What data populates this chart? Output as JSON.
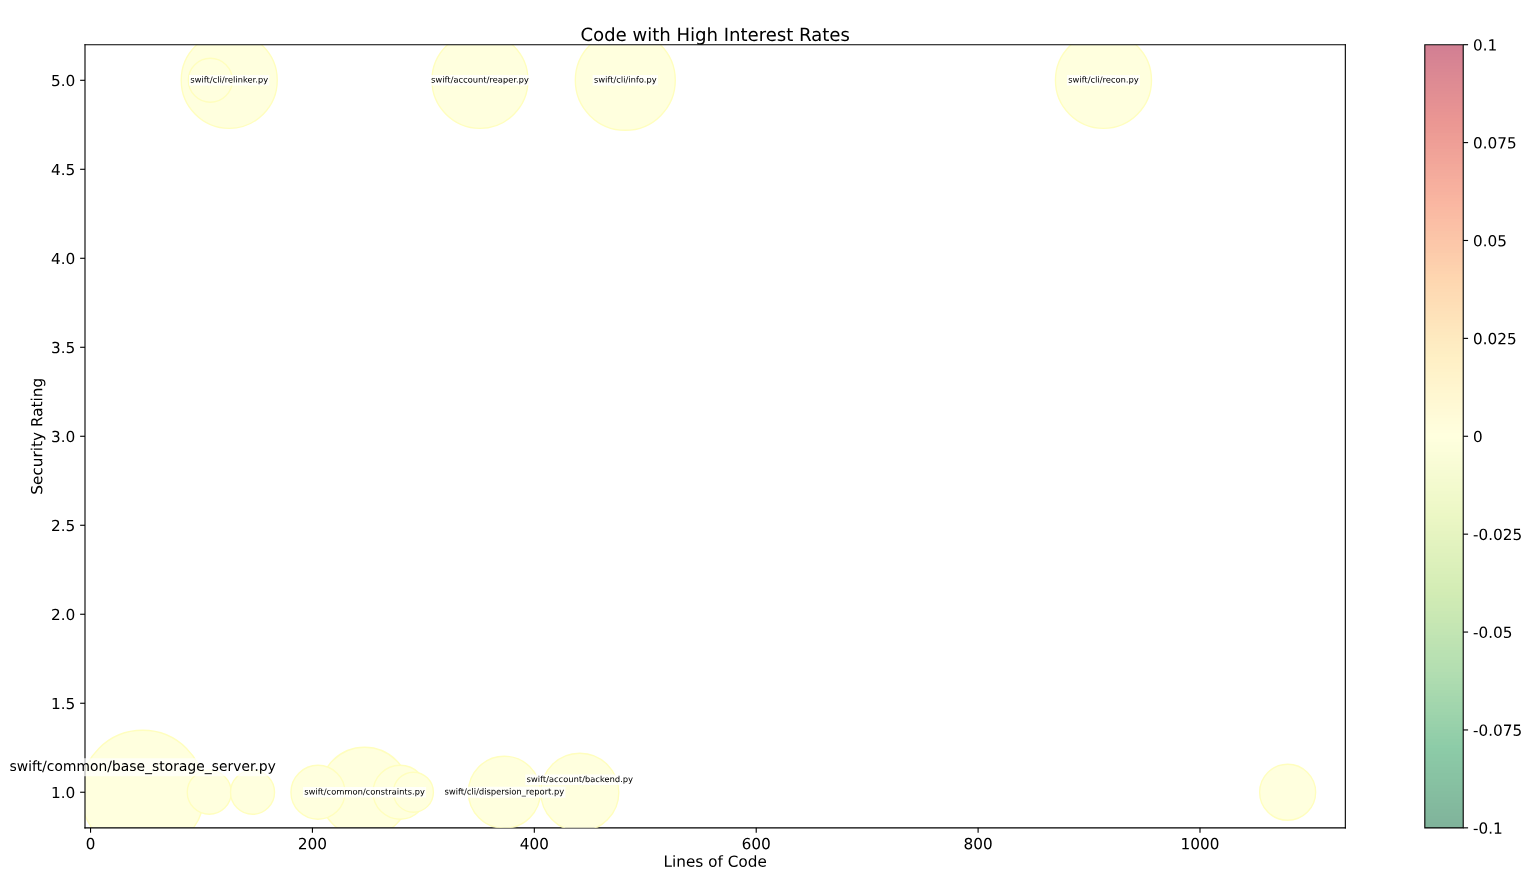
{
  "chart_data": {
    "type": "bubble",
    "title": "Code with High Interest Rates",
    "xlabel": "Lines of Code",
    "ylabel": "Security Rating",
    "x": [
      47,
      107,
      146,
      205,
      247,
      279,
      291,
      373,
      441,
      1079,
      108,
      125,
      351,
      482,
      913
    ],
    "values": [
      1,
      1,
      1,
      1,
      1,
      1,
      1,
      1,
      1,
      1,
      5,
      5,
      5,
      5,
      5
    ],
    "sizes": [
      1,
      0.126,
      0.126,
      0.19,
      0.527,
      0.19,
      0.104,
      0.337,
      0.396,
      0.204,
      0.126,
      0.6,
      0.6,
      0.65,
      0.6
    ],
    "cvalues": [
      0,
      0,
      0,
      0,
      0,
      0,
      0,
      0,
      0,
      0,
      0,
      0,
      0,
      0,
      0
    ],
    "clim": [
      -0.1,
      0.1
    ],
    "cticks": [
      -0.1,
      -0.075,
      -0.05,
      -0.025,
      0,
      0.025,
      0.05,
      0.075,
      0.1
    ],
    "xlim": [
      -5,
      1131
    ],
    "ylim": [
      0.8,
      5.2
    ],
    "xticks": [
      0,
      200,
      400,
      600,
      800,
      1000
    ],
    "yticks": [
      {
        "value": 1,
        "label": "1.0"
      },
      1.5,
      {
        "value": 2,
        "label": "2.0"
      },
      2.5,
      {
        "value": 3,
        "label": "3.0"
      },
      3.5,
      {
        "value": 4,
        "label": "4.0"
      },
      4.5,
      {
        "value": 5,
        "label": "5.0"
      }
    ],
    "annotations": [
      {
        "text": "swift/common/base_storage_server.py",
        "x": 47,
        "y": 1
      },
      {
        "text": "swift/common/constraints.py",
        "x": 247,
        "y": 1
      },
      {
        "text": "swift/cli/dispersion_report.py",
        "x": 373,
        "y": 1
      },
      {
        "text": "swift/account/backend.py",
        "x": 441,
        "y": 1
      },
      {
        "text": "swift/cli/relinker.py",
        "x": 125,
        "y": 5
      },
      {
        "text": "swift/account/reaper.py",
        "x": 351,
        "y": 5
      },
      {
        "text": "swift/cli/info.py",
        "x": 482,
        "y": 5
      },
      {
        "text": "swift/cli/recon.py",
        "x": 913,
        "y": 5
      }
    ]
  }
}
